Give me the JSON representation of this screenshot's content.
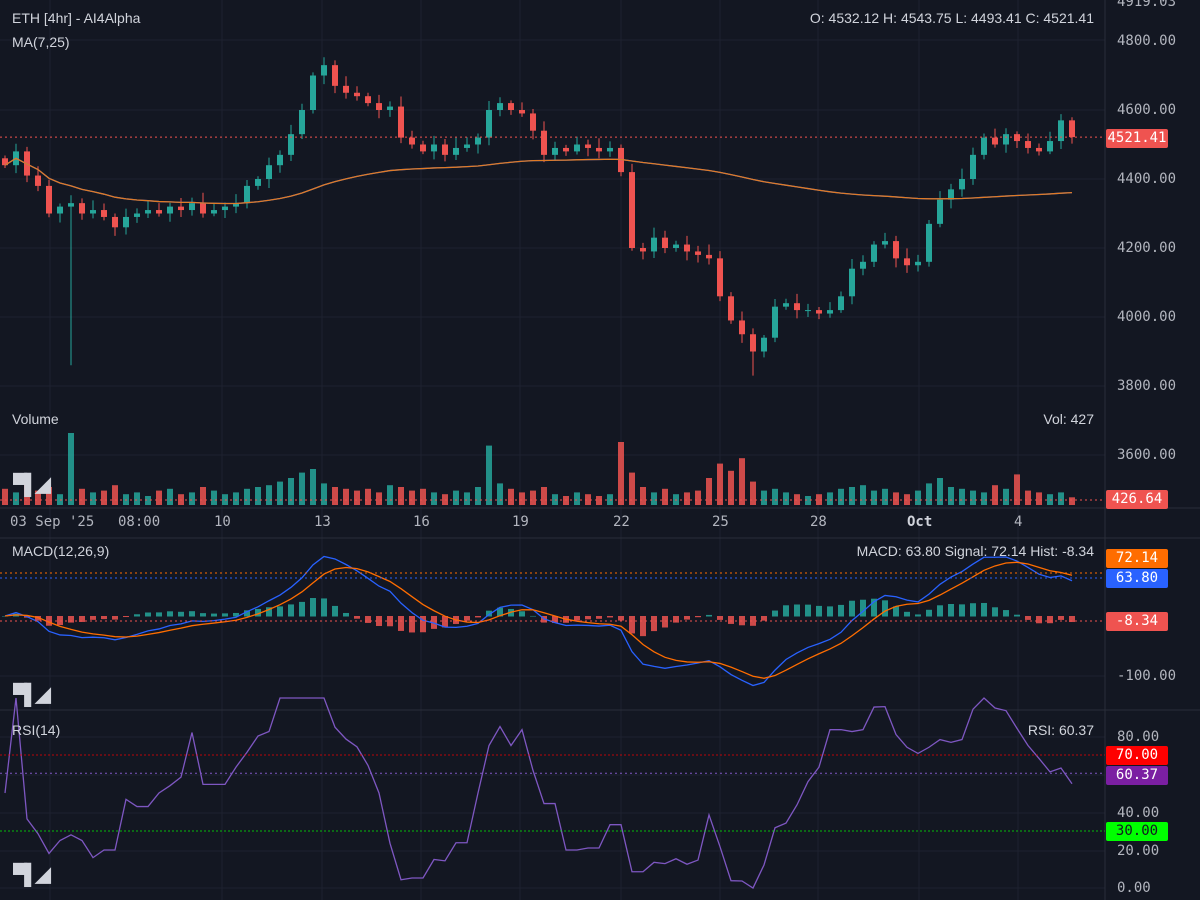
{
  "header": {
    "title": "ETH [4hr] - AI4Alpha",
    "ohlc": "O: 4532.12 H: 4543.75 L: 4493.41 C: 4521.41",
    "ma_label": "MA(7,25)"
  },
  "volume": {
    "label": "Volume",
    "readout": "Vol: 427",
    "last_tag": "426.64"
  },
  "macd": {
    "label": "MACD(12,26,9)",
    "readout": "MACD: 63.80 Signal: 72.14 Hist: -8.34",
    "tags": {
      "signal": "72.14",
      "macd": "63.80",
      "hist": "-8.34"
    },
    "axis": [
      "-100.00"
    ]
  },
  "rsi": {
    "label": "RSI(14)",
    "readout": "RSI: 60.37",
    "tags": {
      "upper": "70.00",
      "value": "60.37",
      "lower": "30.00"
    },
    "axis": [
      "80.00",
      "40.00",
      "20.00",
      "0.00"
    ]
  },
  "price_axis": [
    "4919.03",
    "4800.00",
    "4600.00",
    "4400.00",
    "4200.00",
    "4000.00",
    "3800.00",
    "3600.00"
  ],
  "price_tag": "4521.41",
  "colors": {
    "up": "#26a69a",
    "down": "#ef5350",
    "ma_fast": "#2962ff",
    "ma_slow": "#e07b24",
    "macd": "#2962ff",
    "signal": "#ff6d00",
    "rsi": "#7e57c2",
    "overbought": "#ff0000",
    "oversold": "#00ff00"
  },
  "logo": "TV",
  "chart_data": {
    "type": "candlestick",
    "symbol": "ETH",
    "interval": "4hr",
    "x_ticks": [
      "03 Sep '25",
      "08:00",
      "10",
      "13",
      "16",
      "19",
      "22",
      "25",
      "28",
      "Oct",
      "4"
    ],
    "ylim": [
      3600,
      4919.03
    ],
    "closes": [
      4440,
      4480,
      4410,
      4380,
      4300,
      4320,
      4330,
      4300,
      4310,
      4290,
      4260,
      4290,
      4300,
      4310,
      4300,
      4320,
      4310,
      4330,
      4300,
      4310,
      4320,
      4330,
      4380,
      4400,
      4440,
      4470,
      4530,
      4600,
      4700,
      4730,
      4670,
      4650,
      4640,
      4620,
      4600,
      4610,
      4520,
      4500,
      4480,
      4500,
      4470,
      4490,
      4500,
      4520,
      4600,
      4620,
      4600,
      4590,
      4540,
      4470,
      4490,
      4480,
      4500,
      4490,
      4480,
      4490,
      4420,
      4200,
      4190,
      4230,
      4200,
      4210,
      4190,
      4180,
      4170,
      4060,
      3990,
      3950,
      3900,
      3940,
      4030,
      4040,
      4020,
      4020,
      4010,
      4020,
      4060,
      4140,
      4160,
      4210,
      4220,
      4170,
      4150,
      4160,
      4270,
      4340,
      4370,
      4400,
      4470,
      4520,
      4500,
      4530,
      4510,
      4490,
      4480,
      4510,
      4570,
      4521.41
    ],
    "volumes": [
      900,
      700,
      1200,
      800,
      1000,
      600,
      4000,
      900,
      700,
      800,
      1100,
      600,
      700,
      500,
      800,
      900,
      600,
      700,
      1000,
      800,
      600,
      700,
      900,
      1000,
      1100,
      1300,
      1500,
      1800,
      2000,
      1200,
      1000,
      900,
      800,
      900,
      700,
      1100,
      1000,
      800,
      900,
      700,
      600,
      800,
      700,
      1000,
      3300,
      1200,
      900,
      700,
      800,
      1000,
      600,
      500,
      700,
      600,
      500,
      600,
      3500,
      1800,
      1000,
      700,
      900,
      600,
      700,
      800,
      1500,
      2300,
      1900,
      2600,
      1300,
      800,
      900,
      700,
      600,
      500,
      600,
      700,
      900,
      1000,
      1100,
      800,
      900,
      700,
      600,
      800,
      1200,
      1500,
      1000,
      900,
      800,
      700,
      1100,
      900,
      1700,
      800,
      700,
      600,
      700,
      427
    ]
  }
}
